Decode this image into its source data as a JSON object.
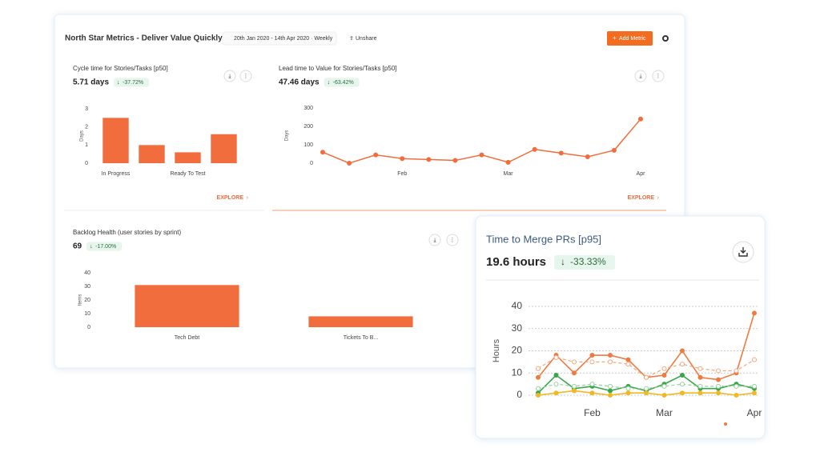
{
  "header": {
    "title": "North Star Metrics - Deliver Value Quickly",
    "date_range": "20th Jan 2020 - 14th Apr 2020 · Weekly",
    "share": "Unshare",
    "add_button": "Add Metric"
  },
  "panels": [
    {
      "title": "Cycle time for Stories/Tasks [p50]",
      "value": "5.71 days",
      "change": "-37.72%",
      "explore": "EXPLORE",
      "chart": {
        "type": "bar",
        "ylabel": "Days",
        "color": "#f26d3d",
        "categories": [
          "In Progress",
          null,
          "Ready To Test",
          null
        ],
        "values": [
          2.5,
          1,
          0.6,
          1.6
        ],
        "ylim": [
          0,
          3
        ],
        "yticks": [
          0,
          1,
          2,
          3
        ]
      }
    },
    {
      "title": "Lead time to Value for Stories/Tasks [p50]",
      "value": "47.46 days",
      "change": "-63.42%",
      "explore": "EXPLORE",
      "chart": {
        "type": "line",
        "ylabel": "Days",
        "color": "#f26d3d",
        "categories": [
          null,
          null,
          null,
          "Feb",
          null,
          null,
          null,
          "Mar",
          null,
          null,
          null,
          null,
          "Apr"
        ],
        "values": [
          60,
          0,
          45,
          25,
          20,
          15,
          45,
          5,
          75,
          55,
          35,
          70,
          240
        ],
        "ylim": [
          0,
          300
        ],
        "yticks": [
          0,
          100,
          200,
          300
        ]
      }
    },
    {
      "title": "Backlog Health (user stories by sprint)",
      "value": "69",
      "change": "-17.00%",
      "chart": {
        "type": "bar",
        "ylabel": "Items",
        "color": "#f26d3d",
        "categories": [
          "Tech Debt",
          "Tickets To B..."
        ],
        "values": [
          31,
          8
        ],
        "ylim": [
          0,
          40
        ],
        "yticks": [
          0,
          10,
          20,
          30,
          40
        ]
      }
    }
  ],
  "overlay": {
    "title": "Time to Merge PRs [p95]",
    "value": "19.6 hours",
    "change": "-33.33%",
    "chart": {
      "type": "multiline",
      "ylabel": "Hours",
      "categories": [
        null,
        null,
        null,
        "Feb",
        null,
        null,
        null,
        "Mar",
        null,
        null,
        null,
        null,
        "Apr"
      ],
      "ylim": [
        0,
        40
      ],
      "yticks": [
        0,
        10,
        20,
        30,
        40
      ],
      "series": [
        {
          "color": "#f07a3f",
          "dashed": false,
          "values": [
            8,
            18,
            10,
            18,
            18,
            16,
            8,
            9,
            20,
            8,
            7,
            10,
            37
          ]
        },
        {
          "color": "#f3a77c",
          "dashed": true,
          "values": [
            12,
            17,
            15,
            15,
            15,
            14,
            8,
            12,
            14,
            12,
            11,
            11,
            16
          ]
        },
        {
          "color": "#3aa64a",
          "dashed": false,
          "values": [
            1,
            9,
            3,
            4,
            2,
            4,
            2,
            5,
            9,
            3,
            3,
            5,
            3
          ]
        },
        {
          "color": "#93d39d",
          "dashed": true,
          "values": [
            3,
            5,
            4,
            5,
            4,
            3,
            3,
            4,
            5,
            4,
            4,
            4,
            4
          ]
        },
        {
          "color": "#f2b822",
          "dashed": false,
          "values": [
            0,
            1,
            2,
            1,
            0,
            1,
            1,
            0,
            1,
            1,
            1,
            0,
            1
          ]
        }
      ]
    }
  }
}
